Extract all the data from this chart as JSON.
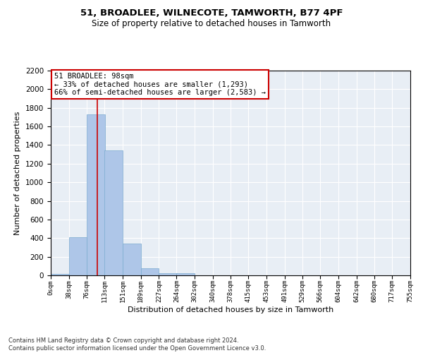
{
  "title1": "51, BROADLEE, WILNECOTE, TAMWORTH, B77 4PF",
  "title2": "Size of property relative to detached houses in Tamworth",
  "xlabel": "Distribution of detached houses by size in Tamworth",
  "ylabel": "Number of detached properties",
  "bar_values": [
    15,
    410,
    1730,
    1340,
    340,
    75,
    25,
    25,
    0,
    0,
    0,
    0,
    0,
    0,
    0,
    0,
    0,
    0,
    0,
    0
  ],
  "bin_edges": [
    0,
    38,
    76,
    113,
    151,
    189,
    227,
    264,
    302,
    340,
    378,
    415,
    453,
    491,
    529,
    566,
    604,
    642,
    680,
    717,
    755
  ],
  "bar_color": "#aec6e8",
  "bar_edge_color": "#7aabcf",
  "vline_x": 98,
  "vline_color": "#cc0000",
  "annotation_text": "51 BROADLEE: 98sqm\n← 33% of detached houses are smaller (1,293)\n66% of semi-detached houses are larger (2,583) →",
  "annotation_box_color": "#ffffff",
  "annotation_box_edge": "#cc0000",
  "ylim": [
    0,
    2200
  ],
  "yticks": [
    0,
    200,
    400,
    600,
    800,
    1000,
    1200,
    1400,
    1600,
    1800,
    2000,
    2200
  ],
  "background_color": "#e8eef5",
  "grid_color": "#ffffff",
  "footer": "Contains HM Land Registry data © Crown copyright and database right 2024.\nContains public sector information licensed under the Open Government Licence v3.0.",
  "tick_labels": [
    "0sqm",
    "38sqm",
    "76sqm",
    "113sqm",
    "151sqm",
    "189sqm",
    "227sqm",
    "264sqm",
    "302sqm",
    "340sqm",
    "378sqm",
    "415sqm",
    "453sqm",
    "491sqm",
    "529sqm",
    "566sqm",
    "604sqm",
    "642sqm",
    "680sqm",
    "717sqm",
    "755sqm"
  ]
}
